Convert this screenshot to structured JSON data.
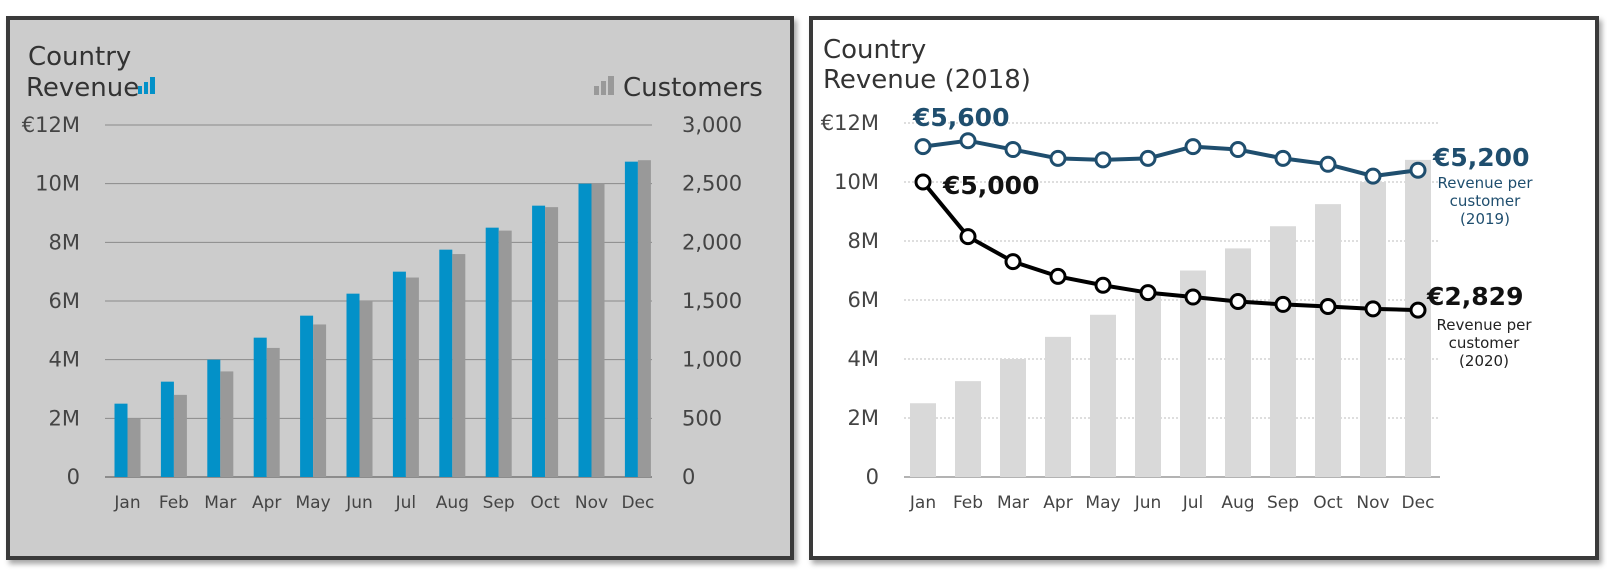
{
  "colors": {
    "revenue": "#0391c8",
    "customers": "#999999",
    "rpc_2019": "#1f4e6e",
    "rpc_2020": "#000000",
    "revenue_muted": "#d9d9d9"
  },
  "chart_data": [
    {
      "type": "bar",
      "title": [
        "Country",
        "Revenue"
      ],
      "categories": [
        "Jan",
        "Feb",
        "Mar",
        "Apr",
        "May",
        "Jun",
        "Jul",
        "Aug",
        "Sep",
        "Oct",
        "Nov",
        "Dec"
      ],
      "series": [
        {
          "name": "Revenue",
          "axis": "left",
          "legend_icon": "bar-chart-icon",
          "values": [
            2.5,
            3.25,
            4.0,
            4.75,
            5.5,
            6.25,
            7.0,
            7.75,
            8.5,
            9.25,
            10.0,
            10.75
          ]
        },
        {
          "name": "Customers",
          "axis": "right",
          "legend_icon": "bar-chart-icon",
          "values": [
            500,
            700,
            900,
            1100,
            1300,
            1500,
            1700,
            1900,
            2100,
            2300,
            2500,
            2700
          ]
        }
      ],
      "y_left": {
        "ylim": [
          0,
          12
        ],
        "ticks": [
          0,
          2,
          4,
          6,
          8,
          10,
          12
        ],
        "tick_labels": [
          "0",
          "2M",
          "4M",
          "6M",
          "8M",
          "10M",
          "€12M"
        ]
      },
      "y_right": {
        "ylim": [
          0,
          3000
        ],
        "ticks": [
          0,
          500,
          1000,
          1500,
          2000,
          2500,
          3000
        ],
        "tick_labels": [
          "0",
          "500",
          "1,000",
          "1,500",
          "2,000",
          "2,500",
          "3,000"
        ]
      },
      "grid": true
    },
    {
      "type": "bar",
      "title": [
        "Country",
        "Revenue (2018)"
      ],
      "categories": [
        "Jan",
        "Feb",
        "Mar",
        "Apr",
        "May",
        "Jun",
        "Jul",
        "Aug",
        "Sep",
        "Oct",
        "Nov",
        "Dec"
      ],
      "series": [
        {
          "name": "Revenue",
          "kind": "bar",
          "values": [
            2.5,
            3.25,
            4.0,
            4.75,
            5.5,
            6.25,
            7.0,
            7.75,
            8.5,
            9.25,
            10.0,
            10.75
          ]
        },
        {
          "name": "Revenue per customer (2019)",
          "kind": "line",
          "values": [
            5600,
            5700,
            5550,
            5400,
            5375,
            5400,
            5600,
            5550,
            5400,
            5300,
            5100,
            5200
          ]
        },
        {
          "name": "Revenue per customer (2020)",
          "kind": "line",
          "values": [
            5000,
            4075,
            3650,
            3400,
            3250,
            3125,
            3050,
            2975,
            2925,
            2890,
            2850,
            2829
          ]
        }
      ],
      "y_left": {
        "ylim": [
          0,
          12
        ],
        "ticks": [
          0,
          2,
          4,
          6,
          8,
          10,
          12
        ],
        "tick_labels": [
          "0",
          "2M",
          "4M",
          "6M",
          "8M",
          "10M",
          "€12M"
        ]
      },
      "line_scale_max": 6000,
      "annotations": {
        "rpc_2019_start": "€5,600",
        "rpc_2019_end": "€5,200",
        "rpc_2019_note": [
          "Revenue per",
          "customer",
          "(2019)"
        ],
        "rpc_2020_start": "€5,000",
        "rpc_2020_end": "€2,829",
        "rpc_2020_note": [
          "Revenue per",
          "customer",
          "(2020)"
        ]
      },
      "grid": true
    }
  ]
}
